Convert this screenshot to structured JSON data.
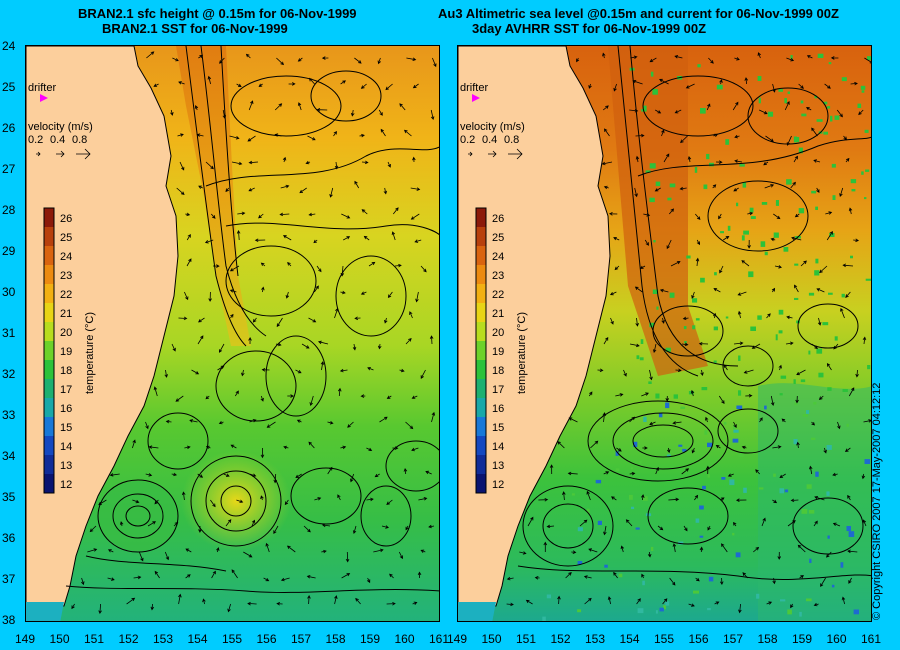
{
  "left_panel": {
    "title_line1": "BRAN2.1 sfc height @ 0.15m for 06-Nov-1999",
    "title_line2": "BRAN2.1 SST for 06-Nov-1999"
  },
  "right_panel": {
    "title_line1": "Au3 Altimetric sea level  @0.15m and current for 06-Nov-1999 00Z",
    "title_line2": "3day AVHRR SST for 06-Nov-1999 00Z"
  },
  "drifter_label": "drifter",
  "velocity_legend": {
    "title": "velocity (m/s)",
    "values": [
      "0.2",
      "0.4",
      "0.8"
    ]
  },
  "colorbar": {
    "label": "temperature (°C)",
    "ticks": [
      "26",
      "25",
      "24",
      "23",
      "22",
      "21",
      "20",
      "19",
      "18",
      "17",
      "16",
      "15",
      "14",
      "13",
      "12"
    ],
    "colors": [
      "#8c1a0a",
      "#b8400c",
      "#d9630f",
      "#ec8a10",
      "#f2b012",
      "#e8d415",
      "#b8dc1e",
      "#6cd22a",
      "#2cc23a",
      "#1cb070",
      "#18a8a8",
      "#1878d8",
      "#1448c0",
      "#102c98",
      "#0a1470"
    ]
  },
  "axes": {
    "y_ticks": [
      "24",
      "25",
      "26",
      "27",
      "28",
      "29",
      "30",
      "31",
      "32",
      "33",
      "34",
      "35",
      "36",
      "37",
      "38"
    ],
    "x_ticks": [
      "149",
      "150",
      "151",
      "152",
      "153",
      "154",
      "155",
      "156",
      "157",
      "158",
      "159",
      "160",
      "161"
    ]
  },
  "copyright": "© Copyright CSIRO 2007   17-May-2007 04:12:12",
  "colors": {
    "background": "#00ccff",
    "land": "#fccf9c",
    "drifter": "#ff00ff",
    "sst_warm": "#e89a14",
    "sst_mid": "#dccf22",
    "sst_cool": "#4cc23a",
    "sst_cold": "#18b090"
  }
}
